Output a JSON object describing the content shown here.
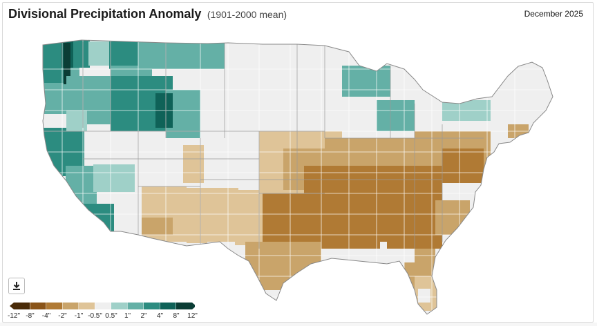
{
  "header": {
    "title": "Divisional Precipitation Anomaly",
    "subtitle": "(1901-2000 mean)",
    "date": "December 2025"
  },
  "download": {
    "icon": "download-icon"
  },
  "legend": {
    "labels": [
      "-12\"",
      "-8\"",
      "-4\"",
      "-2\"",
      "-1\"",
      "-0.5\"",
      "0.5\"",
      "1\"",
      "2\"",
      "4\"",
      "8\"",
      "12\""
    ],
    "colors": [
      "#4a2b08",
      "#8a5418",
      "#b07a34",
      "#c9a46a",
      "#dfc498",
      "#efefef",
      "#9fd0c8",
      "#64b0a6",
      "#2c8c80",
      "#0f6258",
      "#0b3d35"
    ]
  },
  "map": {
    "background_color": "#efefef",
    "border_color": "#ffffff"
  }
}
